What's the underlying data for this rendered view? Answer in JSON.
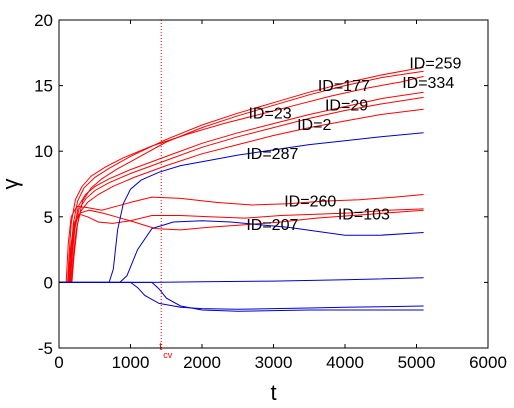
{
  "chart_data": {
    "type": "line",
    "xlabel": "t",
    "ylabel": "γ",
    "xlim": [
      0,
      6000
    ],
    "ylim": [
      -5,
      20
    ],
    "xticks": [
      0,
      1000,
      2000,
      3000,
      4000,
      5000,
      6000
    ],
    "yticks": [
      -5,
      0,
      5,
      10,
      15,
      20
    ],
    "grid": false,
    "colors": {
      "red": "#ff0000",
      "blue": "#0000cc",
      "axis": "#000000"
    },
    "vline": {
      "x": 1430,
      "label": "t",
      "sub": "cv",
      "color": "#ff0000"
    },
    "series": [
      {
        "color": "red",
        "x": [
          0,
          150,
          170,
          200,
          260,
          350,
          500,
          700,
          1000,
          1500,
          2000,
          2500,
          3000,
          3500,
          4000,
          4500,
          5100
        ],
        "y": [
          0,
          0,
          2,
          4.5,
          6.2,
          7.2,
          8,
          8.7,
          9.6,
          10.9,
          12,
          12.9,
          13.7,
          14.5,
          15.2,
          15.8,
          16.4
        ]
      },
      {
        "color": "red",
        "x": [
          0,
          180,
          210,
          260,
          330,
          450,
          600,
          800,
          1100,
          1500,
          2000,
          2500,
          3000,
          3500,
          4000,
          4500,
          5100
        ],
        "y": [
          0,
          0,
          2,
          4.5,
          6.2,
          7.2,
          7.9,
          8.6,
          9.5,
          10.7,
          11.8,
          12.7,
          13.5,
          14.3,
          15,
          15.6,
          16.1
        ]
      },
      {
        "color": "red",
        "x": [
          0,
          120,
          140,
          170,
          230,
          320,
          450,
          650,
          900,
          1300,
          1800,
          2300,
          2800,
          3300,
          3800,
          4300,
          4800,
          5100
        ],
        "y": [
          0,
          0,
          2,
          4.5,
          6.3,
          7.3,
          8.1,
          8.8,
          9.5,
          10.4,
          11.3,
          12.1,
          12.8,
          13.5,
          14.2,
          14.8,
          15.3,
          15.7
        ]
      },
      {
        "color": "red",
        "x": [
          0,
          150,
          175,
          210,
          270,
          370,
          500,
          700,
          1000,
          1500,
          2000,
          2500,
          3000,
          3500,
          4000,
          4500,
          5100
        ],
        "y": [
          0,
          0,
          2,
          4,
          5.8,
          6.7,
          7.3,
          7.9,
          8.6,
          9.6,
          10.6,
          11.4,
          12.1,
          12.8,
          13.4,
          14,
          14.5
        ]
      },
      {
        "color": "red",
        "x": [
          0,
          160,
          185,
          220,
          280,
          380,
          500,
          700,
          1000,
          1500,
          2000,
          2500,
          3000,
          3500,
          4000,
          4500,
          5100
        ],
        "y": [
          0,
          0,
          2,
          4,
          5.6,
          6.4,
          7,
          7.6,
          8.3,
          9.3,
          10.3,
          11.1,
          11.8,
          12.5,
          13.1,
          13.6,
          14.1
        ]
      },
      {
        "color": "red",
        "x": [
          0,
          170,
          200,
          240,
          300,
          400,
          550,
          750,
          1050,
          1500,
          2000,
          2500,
          3000,
          3500,
          4000,
          4500,
          5100
        ],
        "y": [
          0,
          0,
          2,
          4,
          5.4,
          6.1,
          6.7,
          7.3,
          8,
          8.9,
          9.8,
          10.5,
          11.2,
          11.8,
          12.3,
          12.8,
          13.2
        ]
      },
      {
        "color": "red",
        "x": [
          0,
          100,
          130,
          170,
          250,
          400,
          600,
          800,
          1000,
          1300,
          1700,
          2200,
          2700,
          3200,
          3700,
          4200,
          4700,
          5100
        ],
        "y": [
          0,
          0,
          3,
          5,
          5.8,
          5.7,
          5.5,
          5.8,
          6.1,
          6.5,
          6.4,
          6.1,
          5.9,
          6,
          6.2,
          6.3,
          6.5,
          6.7
        ]
      },
      {
        "color": "red",
        "x": [
          0,
          130,
          160,
          210,
          280,
          400,
          550,
          750,
          1000,
          1300,
          1700,
          2100,
          2600,
          3100,
          3600,
          4100,
          4600,
          5100
        ],
        "y": [
          0,
          0,
          2.5,
          4.5,
          5.2,
          5,
          4.6,
          4.5,
          4.7,
          5.1,
          5.1,
          5,
          4.9,
          5.1,
          5.2,
          5.3,
          5.5,
          5.6
        ]
      },
      {
        "color": "red",
        "x": [
          0,
          140,
          170,
          220,
          300,
          420,
          600,
          800,
          1050,
          1350,
          1700,
          2100,
          2600,
          3100,
          3600,
          4100,
          4600,
          5100
        ],
        "y": [
          0,
          0,
          2.5,
          4.5,
          5.3,
          5.5,
          5.3,
          5,
          4.6,
          4.1,
          4,
          4.2,
          4.4,
          4.6,
          4.9,
          5.1,
          5.3,
          5.5
        ]
      },
      {
        "color": "blue",
        "x": [
          0,
          700,
          760,
          820,
          900,
          1000,
          1150,
          1400,
          1700,
          2000,
          2500,
          3000,
          3500,
          4000,
          4500,
          5100
        ],
        "y": [
          0,
          0,
          1,
          4,
          6,
          7.1,
          7.8,
          8.4,
          8.9,
          9.2,
          9.7,
          10.1,
          10.5,
          10.8,
          11.1,
          11.4
        ]
      },
      {
        "color": "blue",
        "x": [
          0,
          850,
          950,
          1100,
          1300,
          1600,
          2000,
          2400,
          2800,
          3200,
          3600,
          4000,
          4500,
          5100
        ],
        "y": [
          0,
          0,
          0.5,
          2.5,
          4.1,
          4.6,
          4.7,
          4.6,
          4.4,
          4.2,
          3.9,
          3.6,
          3.6,
          3.8
        ]
      },
      {
        "color": "blue",
        "x": [
          0,
          1300,
          2000,
          3000,
          4000,
          5100
        ],
        "y": [
          0,
          0,
          0.05,
          0.1,
          0.2,
          0.35
        ]
      },
      {
        "color": "blue",
        "x": [
          0,
          1000,
          1100,
          1200,
          1400,
          1700,
          2000,
          2500,
          3000,
          3500,
          4000,
          4500,
          5100
        ],
        "y": [
          0,
          0,
          -0.4,
          -1,
          -1.6,
          -1.9,
          -2,
          -2.05,
          -2,
          -1.95,
          -1.9,
          -1.85,
          -1.8
        ]
      },
      {
        "color": "blue",
        "x": [
          0,
          1300,
          1400,
          1500,
          1700,
          2000,
          2500,
          3000,
          3500,
          4000,
          4500,
          5100
        ],
        "y": [
          0,
          0,
          -0.5,
          -1.2,
          -1.8,
          -2.1,
          -2.2,
          -2.15,
          -2.1,
          -2.1,
          -2.1,
          -2.1
        ]
      }
    ],
    "annotations": [
      {
        "text": "ID=259",
        "x": 4900,
        "y": 16.3
      },
      {
        "text": "ID=334",
        "x": 4800,
        "y": 14.8
      },
      {
        "text": "ID=177",
        "x": 3620,
        "y": 14.6
      },
      {
        "text": "ID=29",
        "x": 3720,
        "y": 13.1
      },
      {
        "text": "ID=23",
        "x": 2650,
        "y": 12.5
      },
      {
        "text": "ID=2",
        "x": 3330,
        "y": 11.6
      },
      {
        "text": "ID=287",
        "x": 2620,
        "y": 9.4
      },
      {
        "text": "ID=260",
        "x": 3150,
        "y": 5.8
      },
      {
        "text": "ID=207",
        "x": 2620,
        "y": 4.0
      },
      {
        "text": "ID=103",
        "x": 3900,
        "y": 4.8
      }
    ]
  }
}
